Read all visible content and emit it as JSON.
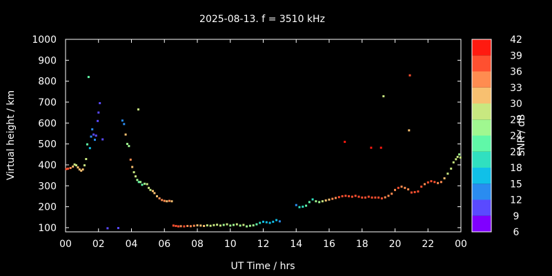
{
  "chart_data": {
    "type": "scatter",
    "title": "2025-08-13. f = 3510 kHz",
    "xlabel": "UT Time / hrs",
    "ylabel": "Virtual height / km",
    "xlim": [
      0,
      24
    ],
    "ylim": [
      80,
      1000
    ],
    "x_tick_labels": [
      "00",
      "02",
      "04",
      "06",
      "08",
      "10",
      "12",
      "14",
      "16",
      "18",
      "20",
      "22",
      "00"
    ],
    "y_tick_labels": [
      "100",
      "200",
      "300",
      "400",
      "500",
      "600",
      "700",
      "800",
      "900",
      "1000"
    ],
    "grid": false,
    "colorbar": {
      "label": "SNR / dB",
      "range": [
        6,
        42
      ],
      "tick_labels": [
        "6",
        "9",
        "12",
        "15",
        "18",
        "21",
        "24",
        "27",
        "30",
        "33",
        "36",
        "39",
        "42"
      ],
      "colors": [
        "#8000ff",
        "#5a4aff",
        "#2a8cf0",
        "#10c0e8",
        "#30e0c0",
        "#60f8a8",
        "#a0f890",
        "#c8e880",
        "#f8c070",
        "#ff8c50",
        "#ff5030",
        "#ff1a10"
      ]
    },
    "points": [
      [
        0.05,
        380,
        38
      ],
      [
        0.15,
        382,
        37
      ],
      [
        0.3,
        385,
        35
      ],
      [
        0.45,
        392,
        30
      ],
      [
        0.55,
        402,
        28
      ],
      [
        0.65,
        398,
        29
      ],
      [
        0.75,
        388,
        30
      ],
      [
        0.85,
        378,
        31
      ],
      [
        0.95,
        372,
        32
      ],
      [
        1.05,
        378,
        30
      ],
      [
        1.15,
        398,
        28
      ],
      [
        1.25,
        428,
        27
      ],
      [
        1.32,
        498,
        22
      ],
      [
        1.4,
        820,
        21
      ],
      [
        1.48,
        480,
        16
      ],
      [
        1.55,
        535,
        13
      ],
      [
        1.62,
        570,
        12
      ],
      [
        1.7,
        545,
        11
      ],
      [
        1.78,
        520,
        12
      ],
      [
        1.85,
        540,
        11
      ],
      [
        1.95,
        610,
        11
      ],
      [
        2.0,
        650,
        10
      ],
      [
        2.08,
        695,
        11
      ],
      [
        2.25,
        522,
        11
      ],
      [
        2.55,
        97,
        10
      ],
      [
        3.2,
        98,
        11
      ],
      [
        3.45,
        612,
        12
      ],
      [
        3.55,
        595,
        14
      ],
      [
        3.65,
        545,
        32
      ],
      [
        3.75,
        500,
        26
      ],
      [
        3.85,
        490,
        25
      ],
      [
        3.95,
        425,
        34
      ],
      [
        4.05,
        390,
        30
      ],
      [
        4.15,
        365,
        29
      ],
      [
        4.25,
        345,
        27
      ],
      [
        4.35,
        328,
        25
      ],
      [
        4.45,
        318,
        23
      ],
      [
        4.55,
        318,
        24
      ],
      [
        4.42,
        665,
        28
      ],
      [
        4.65,
        305,
        22
      ],
      [
        4.8,
        310,
        24
      ],
      [
        4.95,
        308,
        27
      ],
      [
        5.05,
        290,
        28
      ],
      [
        5.15,
        280,
        28
      ],
      [
        5.3,
        275,
        30
      ],
      [
        5.4,
        265,
        31
      ],
      [
        5.55,
        250,
        32
      ],
      [
        5.7,
        240,
        33
      ],
      [
        5.85,
        232,
        34
      ],
      [
        6.0,
        228,
        33
      ],
      [
        6.15,
        226,
        32
      ],
      [
        6.3,
        228,
        33
      ],
      [
        6.45,
        226,
        32
      ],
      [
        6.55,
        110,
        38
      ],
      [
        6.7,
        108,
        37
      ],
      [
        6.85,
        106,
        36
      ],
      [
        7.0,
        107,
        35
      ],
      [
        7.2,
        106,
        36
      ],
      [
        7.4,
        108,
        35
      ],
      [
        7.6,
        107,
        34
      ],
      [
        7.8,
        109,
        33
      ],
      [
        8.0,
        111,
        32
      ],
      [
        8.2,
        110,
        31
      ],
      [
        8.4,
        108,
        30
      ],
      [
        8.6,
        111,
        29
      ],
      [
        8.8,
        109,
        29
      ],
      [
        9.0,
        112,
        28
      ],
      [
        9.2,
        114,
        27
      ],
      [
        9.4,
        110,
        27
      ],
      [
        9.6,
        113,
        26
      ],
      [
        9.8,
        116,
        27
      ],
      [
        10.0,
        110,
        26
      ],
      [
        10.2,
        113,
        25
      ],
      [
        10.4,
        116,
        27
      ],
      [
        10.6,
        110,
        26
      ],
      [
        10.8,
        113,
        27
      ],
      [
        11.0,
        106,
        25
      ],
      [
        11.2,
        109,
        26
      ],
      [
        11.4,
        111,
        24
      ],
      [
        11.6,
        116,
        22
      ],
      [
        11.8,
        123,
        18
      ],
      [
        12.0,
        128,
        17
      ],
      [
        12.2,
        126,
        15
      ],
      [
        12.4,
        123,
        17
      ],
      [
        12.6,
        128,
        16
      ],
      [
        12.8,
        136,
        15
      ],
      [
        13.0,
        130,
        14
      ],
      [
        14.0,
        208,
        12
      ],
      [
        14.2,
        198,
        18
      ],
      [
        14.4,
        200,
        20
      ],
      [
        14.6,
        205,
        22
      ],
      [
        14.8,
        222,
        21
      ],
      [
        15.0,
        235,
        19
      ],
      [
        15.2,
        226,
        25
      ],
      [
        15.4,
        222,
        26
      ],
      [
        15.6,
        226,
        29
      ],
      [
        15.8,
        230,
        31
      ],
      [
        16.0,
        234,
        32
      ],
      [
        16.2,
        238,
        34
      ],
      [
        16.4,
        242,
        35
      ],
      [
        16.6,
        246,
        36
      ],
      [
        16.8,
        250,
        37
      ],
      [
        17.0,
        252,
        38
      ],
      [
        17.2,
        250,
        37
      ],
      [
        17.4,
        248,
        36
      ],
      [
        17.6,
        252,
        38
      ],
      [
        17.8,
        248,
        37
      ],
      [
        18.0,
        244,
        36
      ],
      [
        18.2,
        244,
        37
      ],
      [
        18.4,
        248,
        38
      ],
      [
        18.6,
        244,
        37
      ],
      [
        18.8,
        244,
        36
      ],
      [
        19.0,
        244,
        37
      ],
      [
        19.2,
        240,
        36
      ],
      [
        19.4,
        245,
        35
      ],
      [
        19.6,
        252,
        34
      ],
      [
        19.8,
        262,
        34
      ],
      [
        20.0,
        280,
        35
      ],
      [
        20.2,
        290,
        36
      ],
      [
        20.4,
        296,
        35
      ],
      [
        20.6,
        290,
        34
      ],
      [
        20.8,
        283,
        33
      ],
      [
        21.0,
        268,
        38
      ],
      [
        21.2,
        270,
        37
      ],
      [
        21.4,
        273,
        36
      ],
      [
        21.6,
        296,
        36
      ],
      [
        21.8,
        308,
        35
      ],
      [
        22.0,
        316,
        36
      ],
      [
        22.2,
        322,
        37
      ],
      [
        22.4,
        318,
        36
      ],
      [
        22.6,
        313,
        35
      ],
      [
        22.8,
        318,
        34
      ],
      [
        23.0,
        336,
        31
      ],
      [
        23.2,
        358,
        29
      ],
      [
        23.4,
        382,
        28
      ],
      [
        23.55,
        412,
        29
      ],
      [
        23.7,
        427,
        28
      ],
      [
        23.8,
        438,
        27
      ],
      [
        23.9,
        450,
        26
      ],
      [
        23.97,
        435,
        27
      ],
      [
        16.95,
        510,
        40
      ],
      [
        18.55,
        482,
        40
      ],
      [
        19.15,
        482,
        40
      ],
      [
        19.3,
        728,
        28
      ],
      [
        20.85,
        565,
        30
      ],
      [
        20.9,
        828,
        36
      ]
    ]
  }
}
